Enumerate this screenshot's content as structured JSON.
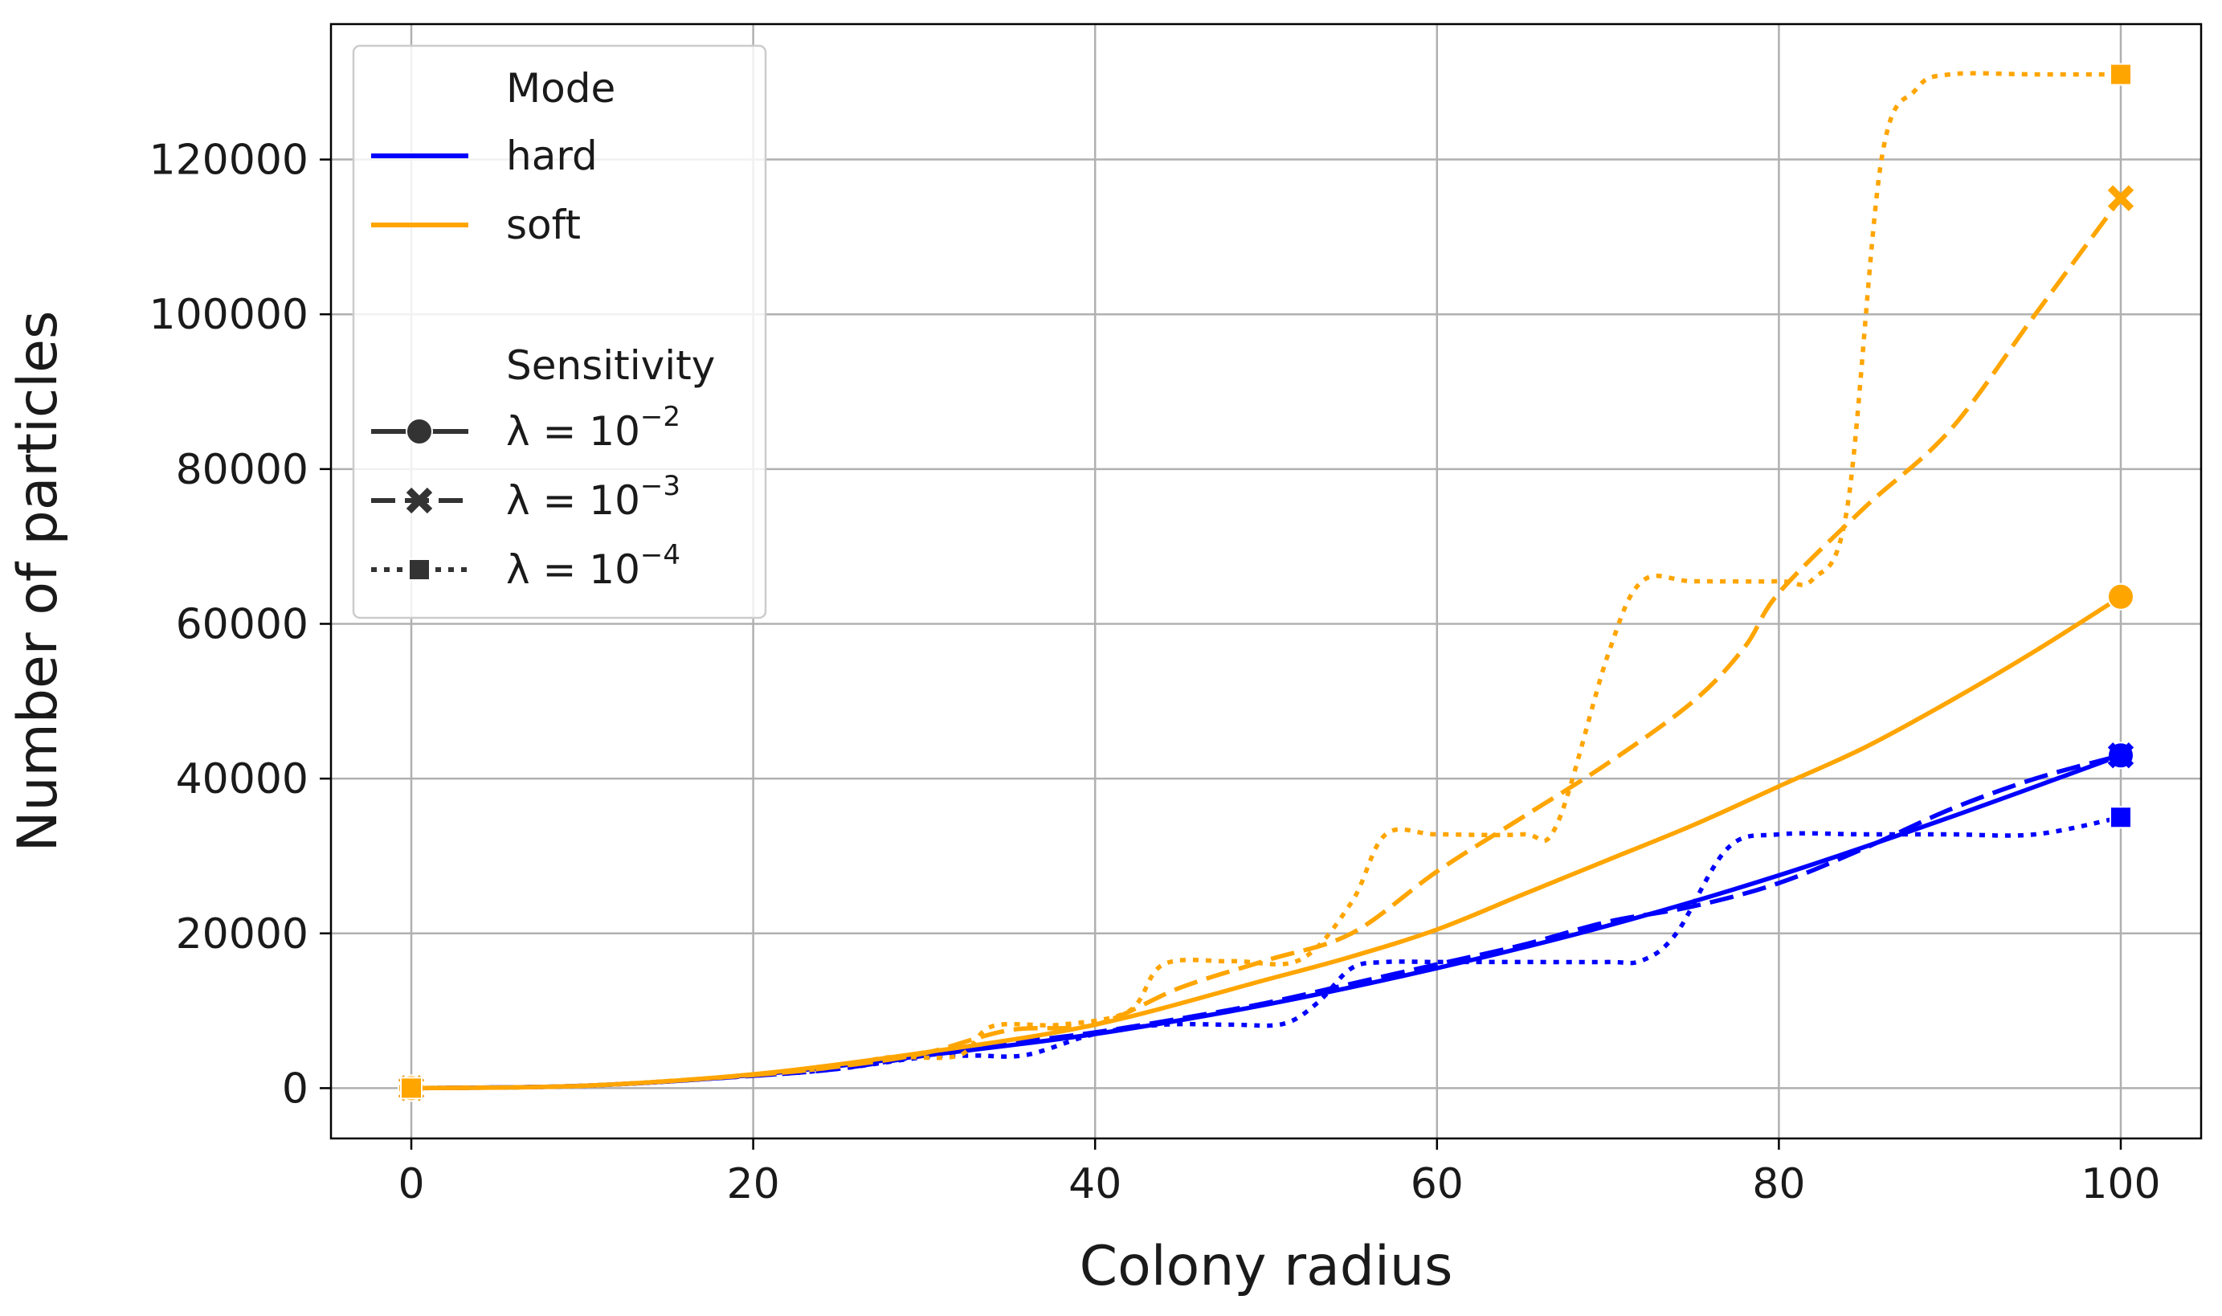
{
  "chart_data": {
    "type": "line",
    "xlabel": "Colony radius",
    "ylabel": "Number of particles",
    "xlim": [
      -4.7,
      104.7
    ],
    "ylim": [
      -6500,
      137500
    ],
    "x_ticks": [
      0,
      20,
      40,
      60,
      80,
      100
    ],
    "y_ticks": [
      0,
      20000,
      40000,
      60000,
      80000,
      100000,
      120000
    ],
    "grid": true,
    "legend": {
      "placement": "top-left",
      "hue_title": "Mode",
      "style_title": "Sensitivity",
      "hue_entries": [
        {
          "label": "hard",
          "color": "#0000ff"
        },
        {
          "label": "soft",
          "color": "#ffa500"
        }
      ],
      "style_entries": [
        {
          "base": "λ = 10",
          "exp": "−2",
          "dash": "solid",
          "marker": "circle"
        },
        {
          "base": "λ = 10",
          "exp": "−3",
          "dash": "dashed",
          "marker": "x"
        },
        {
          "base": "λ = 10",
          "exp": "−4",
          "dash": "dotted",
          "marker": "square"
        }
      ]
    },
    "series": [
      {
        "mode": "hard",
        "sensitivity": "λ = 10^-2",
        "color": "#0000ff",
        "dash": "solid",
        "marker": "circle",
        "x": [
          0,
          10,
          20,
          30,
          40,
          50,
          60,
          70,
          80,
          90,
          100
        ],
        "y": [
          0,
          300,
          1700,
          4200,
          7000,
          10800,
          15500,
          21000,
          27500,
          35000,
          43000
        ]
      },
      {
        "mode": "hard",
        "sensitivity": "λ = 10^-3",
        "color": "#0000ff",
        "dash": "dashed",
        "marker": "x",
        "x": [
          0,
          10,
          20,
          25,
          30,
          35,
          40,
          45,
          50,
          55,
          60,
          65,
          70,
          75,
          80,
          85,
          90,
          95,
          100
        ],
        "y": [
          0,
          300,
          1600,
          2500,
          4200,
          5800,
          7200,
          9000,
          11000,
          13500,
          16000,
          18500,
          21500,
          23500,
          26500,
          31000,
          36000,
          40000,
          43000
        ]
      },
      {
        "mode": "hard",
        "sensitivity": "λ = 10^-4",
        "color": "#0000ff",
        "dash": "dotted",
        "marker": "square",
        "x": [
          0,
          10,
          20,
          25,
          30,
          33,
          36,
          40,
          44,
          48,
          51,
          53,
          55,
          57,
          60,
          65,
          70,
          72,
          74,
          77,
          80,
          85,
          90,
          95,
          100
        ],
        "y": [
          0,
          300,
          1600,
          2500,
          4000,
          4200,
          4300,
          7000,
          8200,
          8200,
          8300,
          11000,
          15500,
          16300,
          16300,
          16300,
          16300,
          16500,
          20000,
          31000,
          32800,
          32800,
          32800,
          32800,
          35000
        ]
      },
      {
        "mode": "soft",
        "sensitivity": "λ = 10^-2",
        "color": "#ffa500",
        "dash": "solid",
        "marker": "circle",
        "x": [
          0,
          10,
          20,
          30,
          40,
          50,
          55,
          60,
          65,
          70,
          75,
          80,
          85,
          90,
          95,
          100
        ],
        "y": [
          0,
          300,
          1800,
          4600,
          8200,
          14000,
          17000,
          20500,
          25000,
          29500,
          34000,
          39000,
          44000,
          50000,
          56500,
          63500
        ]
      },
      {
        "mode": "soft",
        "sensitivity": "λ = 10^-3",
        "color": "#ffa500",
        "dash": "dashed",
        "marker": "x",
        "x": [
          0,
          10,
          20,
          25,
          30,
          35,
          40,
          45,
          50,
          55,
          60,
          65,
          70,
          75,
          78,
          80,
          85,
          90,
          95,
          100
        ],
        "y": [
          0,
          300,
          1700,
          2800,
          4500,
          7500,
          8200,
          13000,
          16500,
          20000,
          28000,
          35000,
          42000,
          50000,
          57000,
          64000,
          75000,
          85000,
          100000,
          115000
        ]
      },
      {
        "mode": "soft",
        "sensitivity": "λ = 10^-4",
        "color": "#ffa500",
        "dash": "dotted",
        "marker": "square",
        "x": [
          0,
          10,
          20,
          25,
          28,
          32,
          34,
          38,
          42,
          44,
          48,
          52,
          55,
          57,
          60,
          65,
          67,
          70,
          72,
          75,
          80,
          82,
          84,
          86,
          88,
          90,
          95,
          100
        ],
        "y": [
          0,
          300,
          1700,
          2800,
          4000,
          4200,
          8000,
          8200,
          10000,
          16000,
          16400,
          16600,
          24000,
          32800,
          32800,
          32800,
          34000,
          56000,
          65500,
          65500,
          65500,
          65800,
          75000,
          120000,
          129000,
          131000,
          131000,
          131000
        ]
      }
    ]
  }
}
